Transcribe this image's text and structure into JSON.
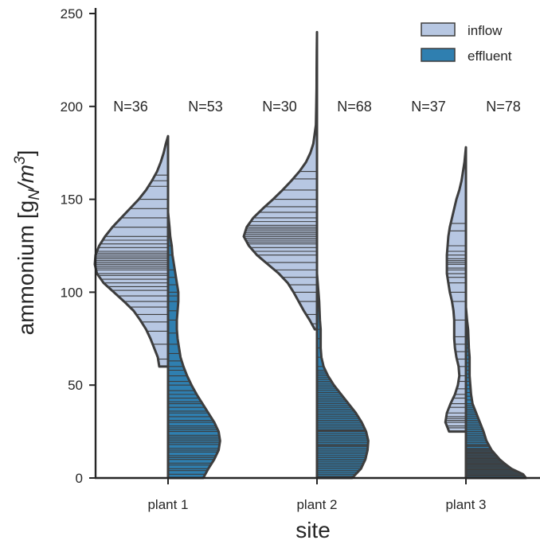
{
  "chart_data": {
    "type": "violin",
    "xlabel": "site",
    "ylabel_main": "ammonium [g",
    "ylabel_sub": "N",
    "ylabel_mid": "/m",
    "ylabel_sup": "3",
    "ylabel_end": "]",
    "ylim": [
      0,
      250
    ],
    "yticks": [
      0,
      50,
      100,
      150,
      200,
      250
    ],
    "categories": [
      "plant 1",
      "plant 2",
      "plant 3"
    ],
    "legend_position": "top-right",
    "series": [
      {
        "name": "inflow",
        "color": "#b7c7e2",
        "n_labels": [
          "N=36",
          "N=30",
          "N=37"
        ],
        "range": [
          [
            60,
            184
          ],
          [
            80,
            240
          ],
          [
            25,
            178
          ]
        ],
        "density": [
          [
            [
              60,
              0.12
            ],
            [
              65,
              0.14
            ],
            [
              70,
              0.19
            ],
            [
              75,
              0.24
            ],
            [
              80,
              0.3
            ],
            [
              85,
              0.38
            ],
            [
              90,
              0.47
            ],
            [
              95,
              0.6
            ],
            [
              100,
              0.74
            ],
            [
              105,
              0.88
            ],
            [
              110,
              0.97
            ],
            [
              115,
              1.0
            ],
            [
              120,
              0.99
            ],
            [
              125,
              0.94
            ],
            [
              130,
              0.86
            ],
            [
              135,
              0.76
            ],
            [
              140,
              0.64
            ],
            [
              145,
              0.52
            ],
            [
              150,
              0.4
            ],
            [
              155,
              0.3
            ],
            [
              160,
              0.22
            ],
            [
              165,
              0.15
            ],
            [
              170,
              0.1
            ],
            [
              175,
              0.06
            ],
            [
              180,
              0.03
            ],
            [
              184,
              0.0
            ]
          ],
          [
            [
              80,
              0.03
            ],
            [
              85,
              0.1
            ],
            [
              90,
              0.18
            ],
            [
              95,
              0.25
            ],
            [
              100,
              0.32
            ],
            [
              105,
              0.4
            ],
            [
              110,
              0.52
            ],
            [
              115,
              0.67
            ],
            [
              120,
              0.82
            ],
            [
              125,
              0.93
            ],
            [
              130,
              1.0
            ],
            [
              135,
              0.96
            ],
            [
              140,
              0.87
            ],
            [
              145,
              0.74
            ],
            [
              150,
              0.6
            ],
            [
              155,
              0.47
            ],
            [
              160,
              0.35
            ],
            [
              165,
              0.24
            ],
            [
              170,
              0.15
            ],
            [
              175,
              0.09
            ],
            [
              180,
              0.05
            ],
            [
              190,
              0.015
            ],
            [
              200,
              0.01
            ],
            [
              210,
              0.006
            ],
            [
              220,
              0.005
            ],
            [
              230,
              0.003
            ],
            [
              240,
              0.0
            ]
          ],
          [
            [
              25,
              0.23
            ],
            [
              30,
              0.28
            ],
            [
              35,
              0.26
            ],
            [
              40,
              0.21
            ],
            [
              45,
              0.15
            ],
            [
              50,
              0.11
            ],
            [
              55,
              0.09
            ],
            [
              60,
              0.1
            ],
            [
              65,
              0.13
            ],
            [
              70,
              0.15
            ],
            [
              75,
              0.16
            ],
            [
              80,
              0.16
            ],
            [
              85,
              0.16
            ],
            [
              90,
              0.17
            ],
            [
              95,
              0.19
            ],
            [
              100,
              0.22
            ],
            [
              105,
              0.24
            ],
            [
              110,
              0.26
            ],
            [
              115,
              0.26
            ],
            [
              120,
              0.26
            ],
            [
              125,
              0.25
            ],
            [
              130,
              0.24
            ],
            [
              135,
              0.22
            ],
            [
              140,
              0.19
            ],
            [
              145,
              0.16
            ],
            [
              150,
              0.13
            ],
            [
              155,
              0.09
            ],
            [
              160,
              0.06
            ],
            [
              165,
              0.04
            ],
            [
              170,
              0.02
            ],
            [
              178,
              0.0
            ]
          ]
        ],
        "values": [
          [
            64,
            72,
            79,
            84,
            88,
            92,
            95,
            98,
            101,
            103,
            105,
            107,
            109,
            110,
            112,
            113,
            114,
            115,
            116,
            117,
            118,
            119,
            120,
            121,
            122,
            124,
            126,
            128,
            130,
            135,
            140,
            145,
            150,
            157,
            160,
            163
          ],
          [
            83,
            88,
            95,
            100,
            104,
            108,
            112,
            116,
            120,
            122,
            124,
            126,
            127,
            128,
            129,
            130,
            131,
            132,
            133,
            134,
            135,
            136,
            138,
            140,
            143,
            146,
            150,
            155,
            161,
            165
          ],
          [
            25,
            27,
            28,
            30,
            31,
            32,
            33,
            35,
            38,
            40,
            43,
            45,
            48,
            52,
            55,
            60,
            64,
            68,
            72,
            76,
            85,
            95,
            100,
            105,
            108,
            110,
            112,
            113,
            115,
            116,
            117,
            118,
            120,
            122,
            125,
            133,
            137
          ]
        ]
      },
      {
        "name": "effluent",
        "color": "#2f7fb0",
        "n_labels": [
          "N=53",
          "N=68",
          "N=78"
        ],
        "range": [
          [
            0,
            143
          ],
          [
            0,
            110
          ],
          [
            0,
            92
          ]
        ],
        "density": [
          [
            [
              0,
              0.48
            ],
            [
              5,
              0.55
            ],
            [
              10,
              0.63
            ],
            [
              15,
              0.69
            ],
            [
              20,
              0.71
            ],
            [
              25,
              0.69
            ],
            [
              30,
              0.63
            ],
            [
              35,
              0.55
            ],
            [
              40,
              0.47
            ],
            [
              45,
              0.39
            ],
            [
              50,
              0.32
            ],
            [
              55,
              0.26
            ],
            [
              60,
              0.21
            ],
            [
              65,
              0.17
            ],
            [
              70,
              0.15
            ],
            [
              75,
              0.13
            ],
            [
              80,
              0.12
            ],
            [
              85,
              0.12
            ],
            [
              90,
              0.13
            ],
            [
              95,
              0.14
            ],
            [
              100,
              0.14
            ],
            [
              105,
              0.12
            ],
            [
              110,
              0.1
            ],
            [
              115,
              0.08
            ],
            [
              120,
              0.06
            ],
            [
              125,
              0.05
            ],
            [
              130,
              0.03
            ],
            [
              135,
              0.02
            ],
            [
              143,
              0.0
            ]
          ],
          [
            [
              0,
              0.48
            ],
            [
              5,
              0.6
            ],
            [
              10,
              0.66
            ],
            [
              15,
              0.69
            ],
            [
              20,
              0.7
            ],
            [
              25,
              0.67
            ],
            [
              30,
              0.61
            ],
            [
              35,
              0.53
            ],
            [
              40,
              0.43
            ],
            [
              45,
              0.33
            ],
            [
              50,
              0.23
            ],
            [
              55,
              0.15
            ],
            [
              60,
              0.09
            ],
            [
              65,
              0.06
            ],
            [
              70,
              0.05
            ],
            [
              75,
              0.05
            ],
            [
              80,
              0.05
            ],
            [
              85,
              0.04
            ],
            [
              90,
              0.035
            ],
            [
              95,
              0.03
            ],
            [
              100,
              0.02
            ],
            [
              105,
              0.01
            ],
            [
              110,
              0.0
            ]
          ],
          [
            [
              0,
              0.82
            ],
            [
              2,
              0.78
            ],
            [
              5,
              0.62
            ],
            [
              8,
              0.52
            ],
            [
              10,
              0.46
            ],
            [
              15,
              0.35
            ],
            [
              20,
              0.28
            ],
            [
              25,
              0.24
            ],
            [
              30,
              0.19
            ],
            [
              35,
              0.14
            ],
            [
              40,
              0.09
            ],
            [
              45,
              0.07
            ],
            [
              50,
              0.06
            ],
            [
              55,
              0.05
            ],
            [
              60,
              0.05
            ],
            [
              65,
              0.05
            ],
            [
              70,
              0.04
            ],
            [
              75,
              0.035
            ],
            [
              80,
              0.03
            ],
            [
              85,
              0.015
            ],
            [
              92,
              0.0
            ]
          ]
        ],
        "values": [
          [
            2,
            4,
            5,
            7,
            8,
            10,
            11,
            12,
            14,
            15,
            16,
            18,
            19,
            20,
            21,
            22,
            23,
            25,
            26,
            27,
            28,
            30,
            31,
            33,
            35,
            36,
            38,
            40,
            41,
            43,
            45,
            47,
            50,
            52,
            55,
            58,
            60,
            63,
            67,
            72,
            78,
            85,
            90,
            95,
            98,
            100,
            104,
            108,
            112,
            120,
            125,
            130,
            135
          ],
          [
            1,
            2,
            3,
            4,
            5,
            6,
            7,
            8,
            9,
            10,
            11,
            12,
            13,
            14,
            15,
            16,
            17,
            17.5,
            18,
            19,
            20,
            21,
            22,
            23,
            24,
            25,
            25.5,
            26,
            27,
            28,
            29,
            30,
            31,
            32,
            33,
            34,
            35,
            36,
            37,
            38,
            39,
            40,
            41,
            42,
            43,
            44,
            45,
            46,
            47,
            48,
            49,
            50,
            51,
            52,
            53,
            54,
            55,
            56,
            57,
            58,
            60,
            65,
            70,
            75,
            80,
            90,
            100,
            108
          ],
          [
            1,
            1.5,
            2,
            2.5,
            3,
            3.5,
            4,
            4.5,
            5,
            5.5,
            6,
            6.5,
            7,
            7.5,
            8,
            8.5,
            9,
            9.5,
            10,
            10.5,
            11,
            11.5,
            12,
            12.5,
            13,
            13.5,
            14,
            14.5,
            15,
            15.5,
            16,
            17,
            17.5,
            18,
            19,
            20,
            21,
            22,
            23,
            24,
            25,
            26,
            27,
            28,
            29,
            30,
            31,
            32,
            33,
            34,
            35,
            36,
            37,
            38,
            39,
            40,
            42,
            44,
            46,
            48,
            50,
            52,
            54,
            56,
            58,
            60,
            62,
            64,
            66,
            68,
            70,
            72,
            75,
            78,
            80,
            82,
            85,
            88
          ]
        ]
      }
    ]
  }
}
